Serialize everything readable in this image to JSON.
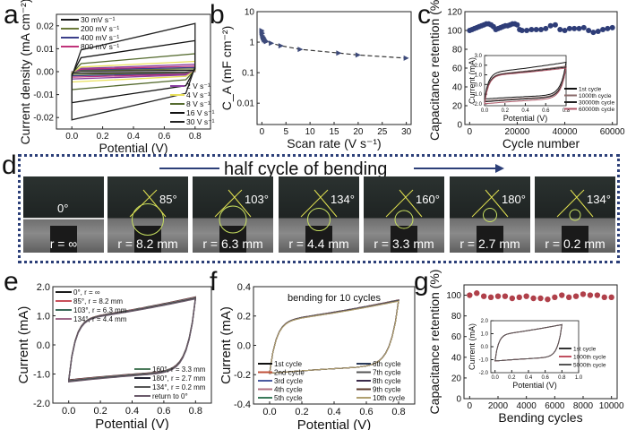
{
  "panels": {
    "a": "a",
    "b": "b",
    "c": "c",
    "d": "d",
    "e": "e",
    "f": "f",
    "g": "g"
  },
  "photo_strip": {
    "title": "half cycle of bending",
    "frames": [
      {
        "angle": "0°",
        "radius": "r = ∞"
      },
      {
        "angle": "85°",
        "radius": "r = 8.2 mm"
      },
      {
        "angle": "103°",
        "radius": "r = 6.3 mm"
      },
      {
        "angle": "134°",
        "radius": "r = 4.4 mm"
      },
      {
        "angle": "160°",
        "radius": "r = 3.3 mm"
      },
      {
        "angle": "180°",
        "radius": "r = 2.7 mm"
      },
      {
        "angle": "134°",
        "radius": "r = 0.2 mm"
      }
    ]
  },
  "chart_data": [
    {
      "id": "a",
      "type": "line",
      "title": "",
      "xlabel": "Potential (V)",
      "ylabel": "Current density (mA cm⁻²)",
      "xlim": [
        -0.1,
        0.9
      ],
      "ylim": [
        -0.025,
        0.025
      ],
      "xticks": [
        "0.0",
        "0.2",
        "0.4",
        "0.6",
        "0.8"
      ],
      "xtick_values": [
        0,
        0.2,
        0.4,
        0.6,
        0.8
      ],
      "yticks": [
        "-0.02",
        "-0.01",
        "0.00",
        "0.01",
        "0.02"
      ],
      "ytick_values": [
        -0.02,
        -0.01,
        0,
        0.01,
        0.02
      ],
      "series": [
        {
          "name": "30 mV s⁻¹",
          "color": "#1a1a1a",
          "amp": 0.0006
        },
        {
          "name": "200 mV s⁻¹",
          "color": "#6b7a3a",
          "amp": 0.0012
        },
        {
          "name": "400 mV s⁻¹",
          "color": "#3b3f8a",
          "amp": 0.0018
        },
        {
          "name": "800 mV s⁻¹",
          "color": "#c0337a",
          "amp": 0.0024
        },
        {
          "name": "2 V s⁻¹",
          "color": "#8a3fa0",
          "amp": 0.0032
        },
        {
          "name": "4 V s⁻¹",
          "color": "#e8e05a",
          "amp": 0.0045
        },
        {
          "name": "8 V s⁻¹",
          "color": "#556b2f",
          "amp": 0.0078
        },
        {
          "name": "16 V s⁻¹",
          "color": "#111111",
          "amp": 0.0135
        },
        {
          "name": "30 V s⁻¹",
          "color": "#222222",
          "amp": 0.021
        }
      ],
      "legend_top_left": [
        "30 mV s⁻¹",
        "200 mV s⁻¹",
        "400 mV s⁻¹",
        "800 mV s⁻¹"
      ],
      "legend_bottom_right": [
        "2 V s⁻¹",
        "4 V s⁻¹",
        "8 V s⁻¹",
        "16 V s⁻¹",
        "30 V s⁻¹"
      ]
    },
    {
      "id": "b",
      "type": "scatter",
      "xlabel": "Scan rate (V s⁻¹)",
      "ylabel": "C_A (mF cm⁻²)",
      "yscale": "log",
      "xlim": [
        -1,
        31
      ],
      "ylim": [
        0.002,
        10
      ],
      "xticks": [
        "0",
        "5",
        "10",
        "15",
        "20",
        "25",
        "30"
      ],
      "xtick_values": [
        0,
        5,
        10,
        15,
        20,
        25,
        30
      ],
      "yticks": [
        "0.01",
        "0.1",
        "1",
        "10"
      ],
      "ytick_values": [
        0.01,
        0.1,
        1,
        10
      ],
      "color": "#3d4a7a",
      "x": [
        0.03,
        0.05,
        0.1,
        0.2,
        0.3,
        0.4,
        0.5,
        0.6,
        0.8,
        1,
        2,
        4,
        8,
        16,
        20,
        30
      ],
      "y": [
        2.4,
        2.1,
        1.9,
        1.6,
        1.45,
        1.35,
        1.25,
        1.18,
        1.1,
        1.05,
        0.92,
        0.76,
        0.58,
        0.44,
        0.38,
        0.3
      ]
    },
    {
      "id": "c",
      "type": "scatter",
      "xlabel": "Cycle number",
      "ylabel": "Capacitance retention (%)",
      "xlim": [
        -2000,
        62000
      ],
      "ylim": [
        0,
        120
      ],
      "xticks": [
        "0",
        "20000",
        "40000",
        "60000"
      ],
      "xtick_values": [
        0,
        20000,
        40000,
        60000
      ],
      "yticks": [
        "0",
        "20",
        "40",
        "60",
        "80",
        "100",
        "120"
      ],
      "ytick_values": [
        0,
        20,
        40,
        60,
        80,
        100,
        120
      ],
      "color": "#2e3d78",
      "x": [
        0,
        1000,
        2000,
        3000,
        4000,
        5000,
        6000,
        7000,
        8000,
        9000,
        10000,
        11000,
        12000,
        13000,
        14000,
        15000,
        16000,
        17000,
        18000,
        19000,
        20000,
        21000,
        22000,
        24000,
        26000,
        28000,
        30000,
        32000,
        34000,
        36000,
        38000,
        40000,
        42000,
        44000,
        46000,
        48000,
        50000,
        52000,
        54000,
        56000,
        58000,
        60000
      ],
      "y": [
        100,
        101,
        102,
        103,
        104,
        105,
        106,
        107,
        107,
        106,
        104,
        101,
        102,
        103,
        104,
        105,
        105,
        106,
        107,
        107,
        106,
        101,
        100,
        100,
        101,
        101,
        101,
        102,
        105,
        106,
        101,
        100,
        102,
        102,
        102,
        103,
        100,
        98,
        99,
        101,
        102,
        103
      ],
      "inset": {
        "xlabel": "Potential (V)",
        "ylabel": "Current (mA)",
        "xlim": [
          0,
          0.8
        ],
        "ylim": [
          -2.2,
          3.0
        ],
        "xticks": [
          "0.0",
          "0.2",
          "0.4",
          "0.6",
          "0.8"
        ],
        "xtick_values": [
          0,
          0.2,
          0.4,
          0.6,
          0.8
        ],
        "yticks": [
          "-2.0",
          "-1.0",
          "0.0",
          "1.0",
          "2.0",
          "3.0"
        ],
        "ytick_values": [
          -2,
          -1,
          0,
          1,
          2,
          3
        ],
        "series": [
          {
            "name": "1st cycle",
            "color": "#111111",
            "top": 2.3,
            "bot": -1.5
          },
          {
            "name": "1000th cycle",
            "color": "#8a6a6a",
            "top": 1.9,
            "bot": -1.7
          },
          {
            "name": "30000th cycle",
            "color": "#222222",
            "top": 1.8,
            "bot": -1.8
          },
          {
            "name": "60000th cycle",
            "color": "#b05a6a",
            "top": 1.7,
            "bot": -2.0
          }
        ]
      }
    },
    {
      "id": "e",
      "type": "line",
      "xlabel": "Potential (V)",
      "ylabel": "Current (mA)",
      "xlim": [
        -0.1,
        0.9
      ],
      "ylim": [
        -2.0,
        2.0
      ],
      "xticks": [
        "0.0",
        "0.2",
        "0.4",
        "0.6",
        "0.8"
      ],
      "xtick_values": [
        0,
        0.2,
        0.4,
        0.6,
        0.8
      ],
      "yticks": [
        "-2.0",
        "-1.0",
        "0.0",
        "1.0",
        "2.0"
      ],
      "ytick_values": [
        -2,
        -1,
        0,
        1,
        2
      ],
      "top": 1.65,
      "bot": -1.2,
      "series": [
        {
          "name": "0°, r = ∞",
          "color": "#1a1a1a"
        },
        {
          "name": "85°, r = 8.2 mm",
          "color": "#c8505a"
        },
        {
          "name": "103°, r = 6.3 mm",
          "color": "#3b6a5a"
        },
        {
          "name": "134°, r = 4.4 mm",
          "color": "#a06a8a"
        },
        {
          "name": "160°, r = 3.3 mm",
          "color": "#4a7a5a"
        },
        {
          "name": "180°, r = 2.7 mm",
          "color": "#222233"
        },
        {
          "name": "134°, r = 0.2 mm",
          "color": "#555555"
        },
        {
          "name": "return to 0°",
          "color": "#6a5a6a"
        }
      ]
    },
    {
      "id": "f",
      "type": "line",
      "title": "bending for 10 cycles",
      "xlabel": "Potential (V)",
      "ylabel": "Current (mA)",
      "xlim": [
        -0.1,
        0.9
      ],
      "ylim": [
        -0.4,
        0.4
      ],
      "xticks": [
        "0.0",
        "0.2",
        "0.4",
        "0.6",
        "0.8"
      ],
      "xtick_values": [
        0,
        0.2,
        0.4,
        0.6,
        0.8
      ],
      "yticks": [
        "-0.4",
        "-0.2",
        "0.0",
        "0.2",
        "0.4"
      ],
      "ytick_values": [
        -0.4,
        -0.2,
        0,
        0.2,
        0.4
      ],
      "top": 0.31,
      "bot": -0.19,
      "series": [
        {
          "name": "1st cycle",
          "color": "#111111"
        },
        {
          "name": "2nd cycle",
          "color": "#c0503a"
        },
        {
          "name": "3rd cycle",
          "color": "#4a5aa0"
        },
        {
          "name": "4th cycle",
          "color": "#b07080"
        },
        {
          "name": "5th cycle",
          "color": "#3a7a5a"
        },
        {
          "name": "6th cycle",
          "color": "#2a3a5a"
        },
        {
          "name": "7th cycle",
          "color": "#555555"
        },
        {
          "name": "8th cycle",
          "color": "#3a2a4a"
        },
        {
          "name": "9th cycle",
          "color": "#5a3a2a"
        },
        {
          "name": "10th cycle",
          "color": "#b0a070"
        }
      ]
    },
    {
      "id": "g",
      "type": "scatter",
      "xlabel": "Bending cycles",
      "ylabel": "Capacitance retention (%)",
      "xlim": [
        -400,
        10400
      ],
      "ylim": [
        0,
        110
      ],
      "xticks": [
        "0",
        "2000",
        "4000",
        "6000",
        "8000",
        "10000"
      ],
      "xtick_values": [
        0,
        2000,
        4000,
        6000,
        8000,
        10000
      ],
      "yticks": [
        "0",
        "20",
        "40",
        "60",
        "80",
        "100"
      ],
      "ytick_values": [
        0,
        20,
        40,
        60,
        80,
        100
      ],
      "color": "#b0404a",
      "x": [
        0,
        500,
        1000,
        1500,
        2000,
        2500,
        3000,
        3500,
        4000,
        4500,
        5000,
        5500,
        6000,
        6500,
        7000,
        7500,
        8000,
        8500,
        9000,
        9500,
        10000
      ],
      "y": [
        100,
        102,
        99,
        98,
        99,
        99,
        97,
        98,
        99,
        97,
        97,
        96,
        98,
        100,
        98,
        99,
        101,
        100,
        100,
        98,
        98
      ],
      "inset": {
        "xlabel": "Potential (V)",
        "ylabel": "Current (mA)",
        "xlim": [
          -0.05,
          1.0
        ],
        "ylim": [
          -2.0,
          2.0
        ],
        "xticks": [
          "0.0",
          "0.2",
          "0.4",
          "0.6",
          "0.8",
          "1.0"
        ],
        "xtick_values": [
          0,
          0.2,
          0.4,
          0.6,
          0.8,
          1.0
        ],
        "yticks": [
          "-2.0",
          "-1.0",
          "0.0",
          "1.0",
          "2.0"
        ],
        "ytick_values": [
          -2,
          -1,
          0,
          1,
          2
        ],
        "top": 1.7,
        "bot": -1.1,
        "series": [
          {
            "name": "1st cycle",
            "color": "#333333"
          },
          {
            "name": "1000th cycle",
            "color": "#c05060"
          },
          {
            "name": "5000th cycle",
            "color": "#555555"
          }
        ]
      }
    }
  ]
}
